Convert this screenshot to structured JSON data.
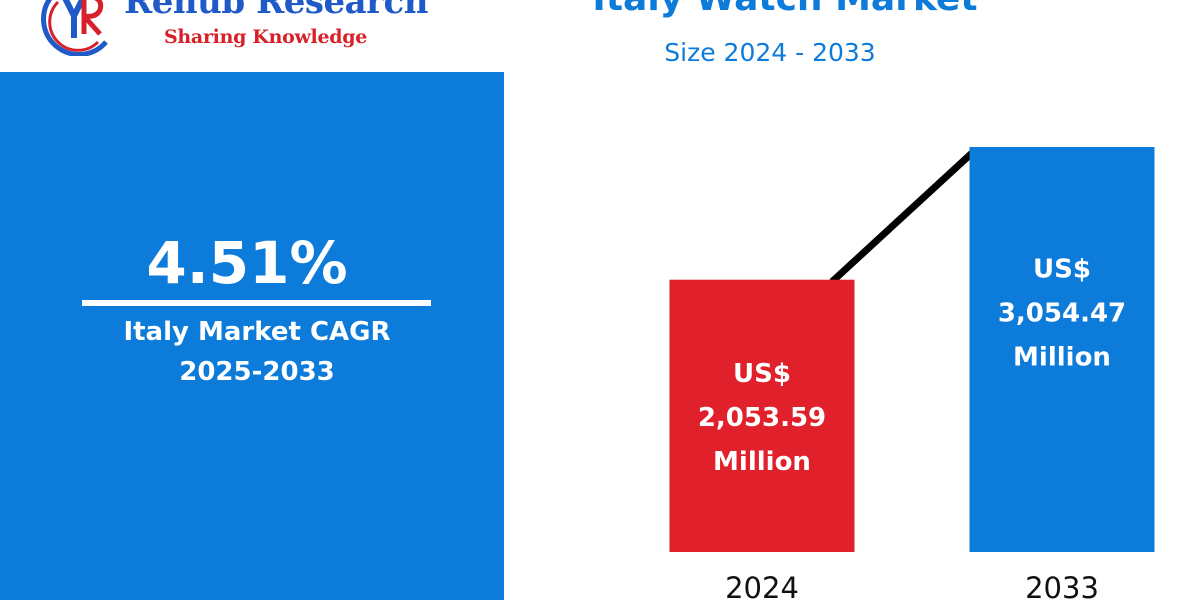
{
  "logo": {
    "name": "Renub Research",
    "tagline": "Sharing Knowledge"
  },
  "cagr": {
    "value": "4.51%",
    "label_line1": "Italy Market CAGR",
    "label_line2": "2025-2033"
  },
  "colors": {
    "accent_blue": "#0c7bd9",
    "bar_2024": "#e0202a",
    "bar_2033": "#0c7bd9",
    "trend_line": "#000000",
    "logo_blue": "#1f5ac8",
    "logo_red": "#d8202a"
  },
  "chart_data": {
    "type": "bar",
    "title": "Italy Watch Market",
    "subtitle": "Size 2024 - 2033",
    "categories": [
      "2024",
      "2033"
    ],
    "values": [
      2053.59,
      3054.47
    ],
    "data_labels": [
      [
        "US$",
        "2,053.59",
        "Million"
      ],
      [
        "US$",
        "3,054.47",
        "Million"
      ]
    ],
    "unit": "US$ Million",
    "trend_line": true,
    "grid": false
  }
}
